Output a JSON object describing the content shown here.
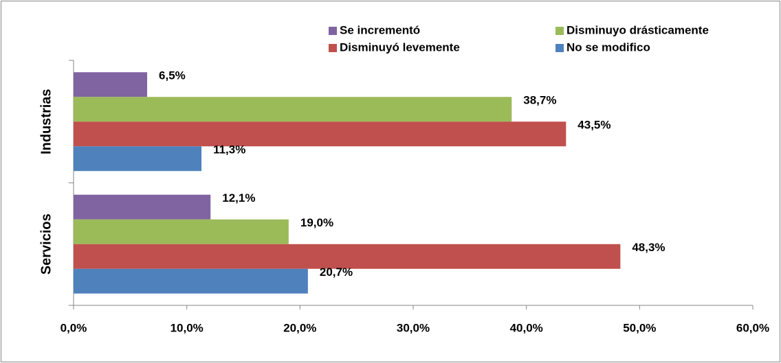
{
  "chart_data": {
    "type": "bar",
    "orientation": "horizontal",
    "categories": [
      "Industrias",
      "Servicios"
    ],
    "series": [
      {
        "name": "Se incrementó",
        "color": "#8064a2",
        "values": [
          6.5,
          12.1
        ],
        "value_labels": [
          "6,5%",
          "12,1%"
        ]
      },
      {
        "name": "Disminuyo drásticamente",
        "color": "#9bbb59",
        "values": [
          38.7,
          19.0
        ],
        "value_labels": [
          "38,7%",
          "19,0%"
        ]
      },
      {
        "name": "Disminuyó levemente",
        "color": "#c0504d",
        "values": [
          43.5,
          48.3
        ],
        "value_labels": [
          "43,5%",
          "48,3%"
        ]
      },
      {
        "name": "No se modifico",
        "color": "#4f81bd",
        "values": [
          11.3,
          20.7
        ],
        "value_labels": [
          "11,3%",
          "20,7%"
        ]
      }
    ],
    "xlim": [
      0,
      60
    ],
    "xticks": [
      {
        "value": 0,
        "label": "0,0%"
      },
      {
        "value": 10,
        "label": "10,0%"
      },
      {
        "value": 20,
        "label": "20,0%"
      },
      {
        "value": 30,
        "label": "30,0%"
      },
      {
        "value": 40,
        "label": "40,0%"
      },
      {
        "value": 50,
        "label": "50,0%"
      },
      {
        "value": 60,
        "label": "60,0%"
      }
    ],
    "grid": false,
    "legend": "top"
  }
}
